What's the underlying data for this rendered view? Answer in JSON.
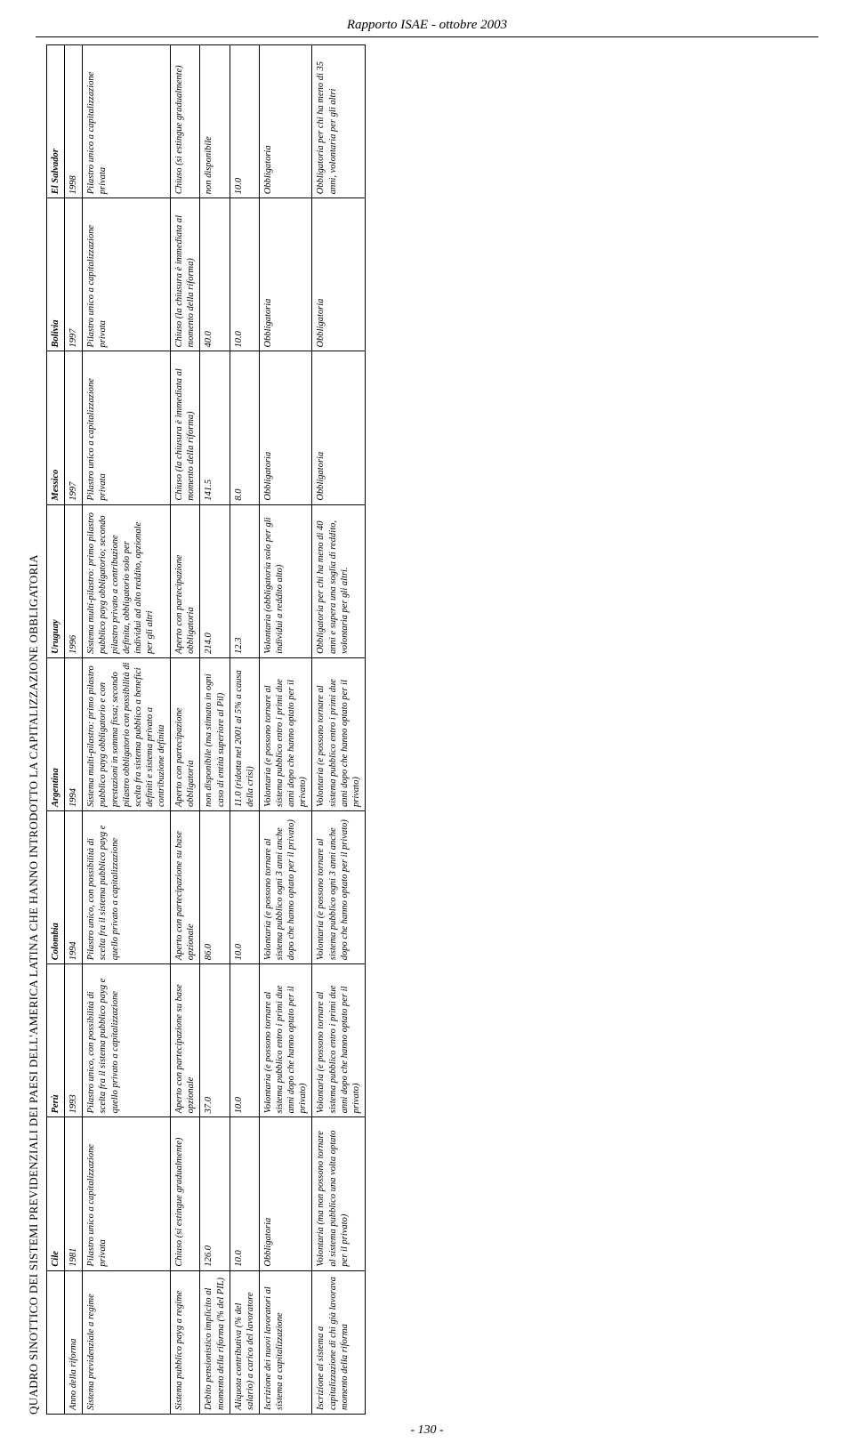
{
  "report_header": "Rapporto ISAE - ottobre 2003",
  "title": "QUADRO SINOTTICO DEI SISTEMI PREVIDENZIALI DEI PAESI DELL'AMERICA LATINA CHE HANNO INTRODOTTO LA CAPITALIZZAZIONE OBBLIGATORIA",
  "page_number": "- 130 -",
  "row_labels": {
    "blank": "",
    "anno": "Anno della riforma",
    "sistema": "Sistema previdenziale a regime",
    "payg": "Sistema pubblico payg a regime",
    "debito": "Debito pensionistico implicito al momento della riforma (% del PIL)",
    "aliquota": "Aliquota contributiva (% del salario) a carico del lavoratore",
    "iscrizione_nuovi": "Iscrizione dei nuovi lavoratori al sistema a capitalizzazione",
    "iscrizione_vecchi": "Iscrizione al sistema a capitalizzazione di chi già lavorava momento della riforma"
  },
  "countries": {
    "cile": {
      "name": "Cile",
      "anno": "1981",
      "sistema": "Pilastro unico a capitalizzazione privata",
      "payg": "Chiuso (si estingue gradualmente)",
      "debito": "126.0",
      "aliquota": "10.0",
      "iscrizione_nuovi": "Obbligatoria",
      "iscrizione_vecchi": "Volontaria (ma non possono tornare al sistema pubblico una volta optato per il privato)"
    },
    "peru": {
      "name": "Perù",
      "anno": "1993",
      "sistema": "Pilastro unico, con possibilità di scelta fra il sistema pubblico payg e quello privato a capitalizzazione",
      "payg": "Aperto con partecipazione su base opzionale",
      "debito": "37.0",
      "aliquota": "10.0",
      "iscrizione_nuovi": "Volontaria (e possono tornare al sistema pubblico entro i primi due anni dopo che hanno optato per il privato)",
      "iscrizione_vecchi": "Volontaria (e possono tornare al sistema pubblico entro i primi due anni dopo che hanno optato per il privato)"
    },
    "colombia": {
      "name": "Colombia",
      "anno": "1994",
      "sistema": "Pilastro unico, con possibilità di scelta fra il sistema pubblico payg e quello privato a capitalizzazione",
      "payg": "Aperto con partecipazione su base opzionale",
      "debito": "86.0",
      "aliquota": "10.0",
      "iscrizione_nuovi": "Volontaria (e possono tornare al sistema pubblico ogni 3 anni anche dopo che hanno optato per il privato)",
      "iscrizione_vecchi": "Volontaria (e possono tornare al sistema pubblico ogni 3 anni anche dopo che hanno optato per il privato)"
    },
    "argentina": {
      "name": "Argentina",
      "anno": "1994",
      "sistema": "Sistema multi-pilastro: primo pilastro pubblico payg obbligatorio e con prestazioni in somma fissa; secondo pilastro obbligatorio con possibilità di scelta fra sistema pubblico a benefici definiti e sistema privato a contribuzione definita",
      "payg": "Aperto con partecipazione obbligatoria",
      "debito": "non disponibile (ma stimato in ogni caso di entità superiore al Pil)",
      "aliquota": "11.0 (ridotta nel 2001 al 5% a causa della crisi)",
      "iscrizione_nuovi": "Volontaria (e possono tornare al sistema pubblico entro i primi due anni dopo che hanno optato per il privato)",
      "iscrizione_vecchi": "Volontaria (e possono tornare al sistema pubblico entro i primi due anni dopo che hanno optato per il privato)"
    },
    "uruguay": {
      "name": "Uruguay",
      "anno": "1996",
      "sistema": "Sistema multi-pilastro: primo pilastro pubblico payg obbligatorio; secondo pilastro privato a contribuzione definita, obbligatorio solo per individui ad alto reddito, opzionale per gli altri",
      "payg": "Aperto con partecipazione obbligatoria",
      "debito": "214.0",
      "aliquota": "12.3",
      "iscrizione_nuovi": "Volontaria (obbligatoria solo per gli individui a reddito alto)",
      "iscrizione_vecchi": "Obbligatoria per chi ha meno di 40 anni e supera una soglia di reddito, volontaria per gli altri."
    },
    "messico": {
      "name": "Messico",
      "anno": "1997",
      "sistema": "Pilastro unico a capitalizzazione privata",
      "payg": "Chiuso (la chiusura è immediata al momento della riforma)",
      "debito": "141.5",
      "aliquota": "8.0",
      "iscrizione_nuovi": "Obbligatoria",
      "iscrizione_vecchi": "Obbligatoria"
    },
    "bolivia": {
      "name": "Bolivia",
      "anno": "1997",
      "sistema": "Pilastro unico a capitalizzazione privata",
      "payg": "Chiuso (la chiusura è immediata al momento della riforma)",
      "debito": "40.0",
      "aliquota": "10.0",
      "iscrizione_nuovi": "Obbligatoria",
      "iscrizione_vecchi": "Obbligatoria"
    },
    "elsalvador": {
      "name": "El Salvador",
      "anno": "1998",
      "sistema": "Pilastro unico a capitalizzazione privata",
      "payg": "Chiuso (si estingue gradualmente)",
      "debito": "non disponibile",
      "aliquota": "10.0",
      "iscrizione_nuovi": "Obbligatoria",
      "iscrizione_vecchi": "Obbligatoria per chi ha meno di 35 anni, volontaria per gli altri"
    }
  }
}
